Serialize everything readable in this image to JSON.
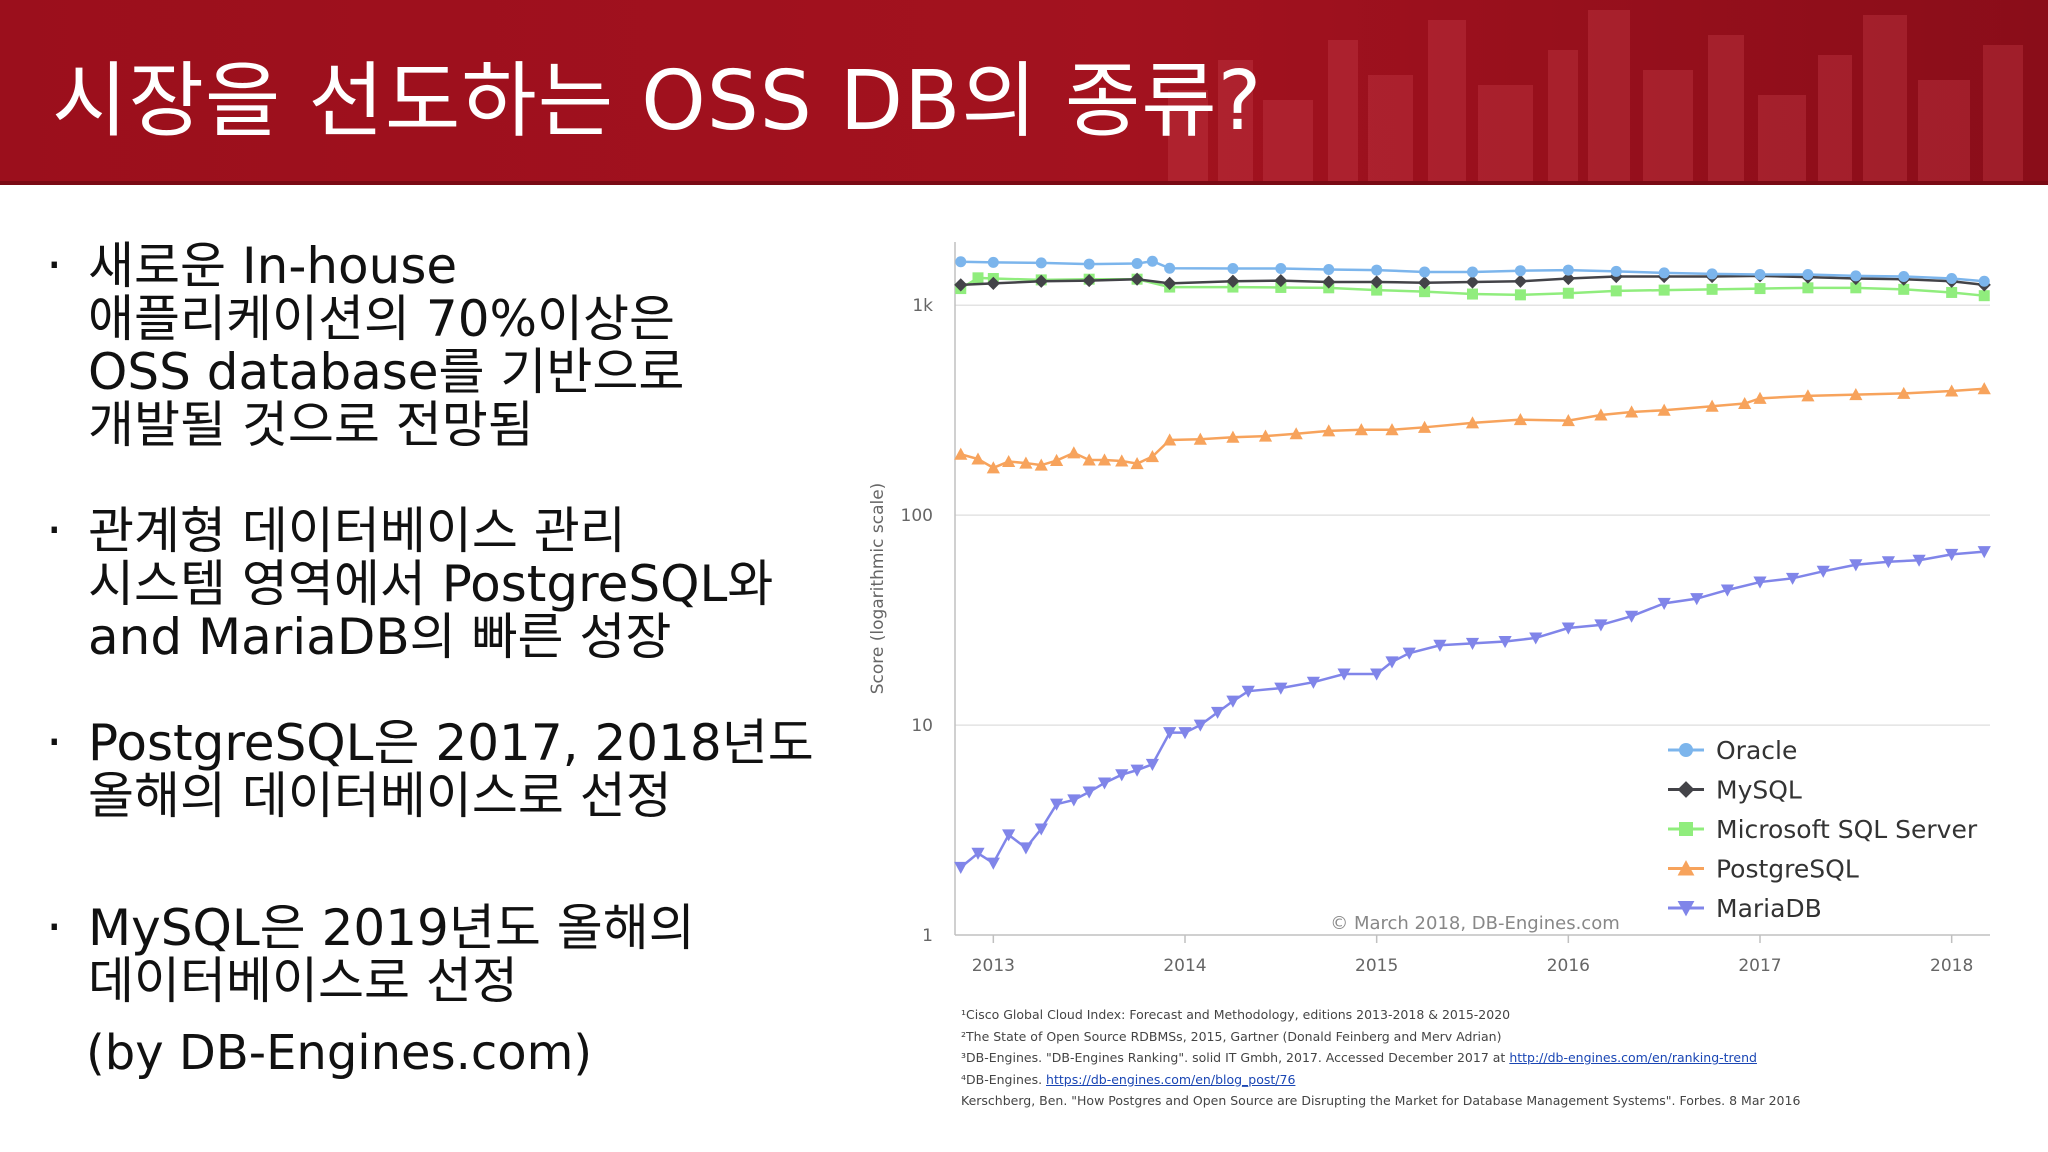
{
  "header": {
    "title": "시장을 선도하는 OSS DB의 종류?"
  },
  "bullets": [
    {
      "lines": [
        "새로운 In-house",
        "애플리케이션의 70%이상은",
        "OSS database를 기반으로",
        "개발될 것으로 전망됨"
      ]
    },
    {
      "lines": [
        "관계형 데이터베이스 관리",
        "시스템 영역에서 PostgreSQL와",
        "and MariaDB의 빠른 성장"
      ]
    },
    {
      "lines": [
        "PostgreSQL은 2017, 2018년도",
        "올해의 데이터베이스로 선정"
      ]
    },
    {
      "lines": [
        "MySQL은 2019년도 올해의",
        "데이터베이스로 선정"
      ]
    }
  ],
  "source_note": "(by DB-Engines.com)",
  "chart_data": {
    "type": "line",
    "ylabel": "Score (logarithmic scale)",
    "yscale": "log",
    "ylim": [
      1,
      2000
    ],
    "y_ticks": [
      "1",
      "10",
      "100",
      "1k"
    ],
    "xlim": [
      2012.8,
      2018.2
    ],
    "x_ticks": [
      "2013",
      "2014",
      "2015",
      "2016",
      "2017",
      "2018"
    ],
    "grid": true,
    "legend_position": "bottom-right",
    "copyright": "© March 2018, DB-Engines.com",
    "series": [
      {
        "name": "Oracle",
        "color": "#7cb5ec",
        "marker": "circle",
        "points": [
          [
            2012.83,
            1610
          ],
          [
            2013.0,
            1600
          ],
          [
            2013.25,
            1590
          ],
          [
            2013.5,
            1570
          ],
          [
            2013.75,
            1580
          ],
          [
            2013.83,
            1620
          ],
          [
            2013.92,
            1500
          ],
          [
            2014.25,
            1495
          ],
          [
            2014.5,
            1495
          ],
          [
            2014.75,
            1480
          ],
          [
            2015.0,
            1470
          ],
          [
            2015.25,
            1440
          ],
          [
            2015.5,
            1440
          ],
          [
            2015.75,
            1460
          ],
          [
            2016.0,
            1470
          ],
          [
            2016.25,
            1450
          ],
          [
            2016.5,
            1425
          ],
          [
            2016.75,
            1410
          ],
          [
            2017.0,
            1400
          ],
          [
            2017.25,
            1400
          ],
          [
            2017.5,
            1380
          ],
          [
            2017.75,
            1370
          ],
          [
            2018.0,
            1340
          ],
          [
            2018.17,
            1300
          ]
        ]
      },
      {
        "name": "MySQL",
        "color": "#434348",
        "marker": "diamond",
        "points": [
          [
            2012.83,
            1250
          ],
          [
            2013.0,
            1270
          ],
          [
            2013.25,
            1300
          ],
          [
            2013.5,
            1310
          ],
          [
            2013.75,
            1330
          ],
          [
            2013.92,
            1270
          ],
          [
            2014.25,
            1300
          ],
          [
            2014.5,
            1310
          ],
          [
            2014.75,
            1290
          ],
          [
            2015.0,
            1290
          ],
          [
            2015.25,
            1280
          ],
          [
            2015.5,
            1290
          ],
          [
            2015.75,
            1300
          ],
          [
            2016.0,
            1340
          ],
          [
            2016.25,
            1370
          ],
          [
            2016.5,
            1370
          ],
          [
            2016.75,
            1370
          ],
          [
            2017.0,
            1380
          ],
          [
            2017.25,
            1360
          ],
          [
            2017.5,
            1340
          ],
          [
            2017.75,
            1330
          ],
          [
            2018.0,
            1300
          ],
          [
            2018.17,
            1250
          ]
        ]
      },
      {
        "name": "Microsoft SQL Server",
        "color": "#90ed7d",
        "marker": "square",
        "points": [
          [
            2012.83,
            1200
          ],
          [
            2012.92,
            1350
          ],
          [
            2013.0,
            1340
          ],
          [
            2013.25,
            1320
          ],
          [
            2013.5,
            1330
          ],
          [
            2013.75,
            1330
          ],
          [
            2013.92,
            1220
          ],
          [
            2014.25,
            1220
          ],
          [
            2014.5,
            1215
          ],
          [
            2014.75,
            1210
          ],
          [
            2015.0,
            1180
          ],
          [
            2015.25,
            1160
          ],
          [
            2015.5,
            1130
          ],
          [
            2015.75,
            1120
          ],
          [
            2016.0,
            1140
          ],
          [
            2016.25,
            1170
          ],
          [
            2016.5,
            1180
          ],
          [
            2016.75,
            1190
          ],
          [
            2017.0,
            1200
          ],
          [
            2017.25,
            1210
          ],
          [
            2017.5,
            1210
          ],
          [
            2017.75,
            1190
          ],
          [
            2018.0,
            1150
          ],
          [
            2018.17,
            1110
          ]
        ]
      },
      {
        "name": "PostgreSQL",
        "color": "#f7a35c",
        "marker": "triangle",
        "points": [
          [
            2012.83,
            195
          ],
          [
            2012.92,
            185
          ],
          [
            2013.0,
            168
          ],
          [
            2013.08,
            180
          ],
          [
            2013.17,
            177
          ],
          [
            2013.25,
            173
          ],
          [
            2013.33,
            182
          ],
          [
            2013.42,
            198
          ],
          [
            2013.5,
            183
          ],
          [
            2013.58,
            183
          ],
          [
            2013.67,
            181
          ],
          [
            2013.75,
            176
          ],
          [
            2013.83,
            190
          ],
          [
            2013.92,
            228
          ],
          [
            2014.08,
            230
          ],
          [
            2014.25,
            235
          ],
          [
            2014.42,
            238
          ],
          [
            2014.58,
            244
          ],
          [
            2014.75,
            252
          ],
          [
            2014.92,
            255
          ],
          [
            2015.08,
            255
          ],
          [
            2015.25,
            262
          ],
          [
            2015.5,
            275
          ],
          [
            2015.75,
            285
          ],
          [
            2016.0,
            282
          ],
          [
            2016.17,
            300
          ],
          [
            2016.33,
            310
          ],
          [
            2016.5,
            316
          ],
          [
            2016.75,
            330
          ],
          [
            2016.92,
            340
          ],
          [
            2017.0,
            360
          ],
          [
            2017.25,
            370
          ],
          [
            2017.5,
            375
          ],
          [
            2017.75,
            380
          ],
          [
            2018.0,
            390
          ],
          [
            2018.17,
            400
          ]
        ]
      },
      {
        "name": "MariaDB",
        "color": "#8085e9",
        "marker": "triangle-down",
        "points": [
          [
            2012.83,
            2.1
          ],
          [
            2012.92,
            2.45
          ],
          [
            2013.0,
            2.2
          ],
          [
            2013.08,
            3.0
          ],
          [
            2013.17,
            2.6
          ],
          [
            2013.25,
            3.2
          ],
          [
            2013.33,
            4.2
          ],
          [
            2013.42,
            4.4
          ],
          [
            2013.5,
            4.8
          ],
          [
            2013.58,
            5.3
          ],
          [
            2013.67,
            5.8
          ],
          [
            2013.75,
            6.1
          ],
          [
            2013.83,
            6.5
          ],
          [
            2013.92,
            9.2
          ],
          [
            2014.0,
            9.2
          ],
          [
            2014.08,
            10
          ],
          [
            2014.17,
            11.5
          ],
          [
            2014.25,
            13
          ],
          [
            2014.33,
            14.5
          ],
          [
            2014.5,
            15
          ],
          [
            2014.67,
            16
          ],
          [
            2014.83,
            17.5
          ],
          [
            2015.0,
            17.5
          ],
          [
            2015.08,
            20
          ],
          [
            2015.17,
            22
          ],
          [
            2015.33,
            24
          ],
          [
            2015.5,
            24.5
          ],
          [
            2015.67,
            25
          ],
          [
            2015.83,
            26
          ],
          [
            2016.0,
            29
          ],
          [
            2016.17,
            30
          ],
          [
            2016.33,
            33
          ],
          [
            2016.5,
            38
          ],
          [
            2016.67,
            40
          ],
          [
            2016.83,
            44
          ],
          [
            2017.0,
            48
          ],
          [
            2017.17,
            50
          ],
          [
            2017.33,
            54
          ],
          [
            2017.5,
            58
          ],
          [
            2017.67,
            60
          ],
          [
            2017.83,
            61
          ],
          [
            2018.0,
            65
          ],
          [
            2018.17,
            67
          ]
        ]
      }
    ]
  },
  "references": [
    "¹Cisco Global Cloud Index: Forecast and Methodology, editions 2013-2018 & 2015-2020",
    "²The State of Open Source RDBMSs, 2015, Gartner (Donald Feinberg and Merv Adrian)",
    "³DB-Engines. \"DB-Engines Ranking\". solid IT Gmbh, 2017.  Accessed December 2017 at ",
    "http://db-engines.com/en/ranking-trend",
    "⁴DB-Engines. ",
    "https://db-engines.com/en/blog_post/76",
    "Kerschberg, Ben. \"How Postgres and Open Source are Disrupting the Market for Database Management Systems\". Forbes. 8 Mar 2016"
  ]
}
